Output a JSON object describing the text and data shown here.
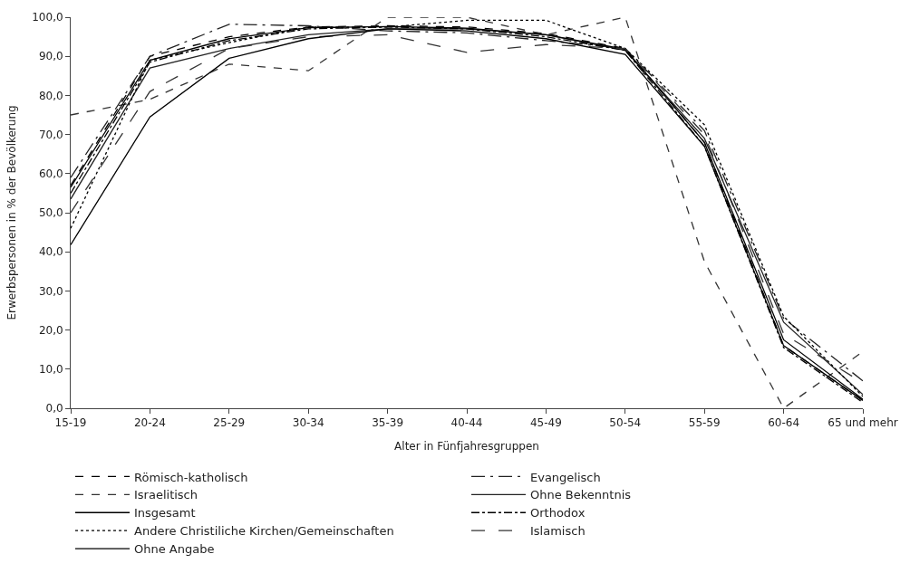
{
  "chart_data": {
    "type": "line",
    "xlabel": "Alter in Fünfjahresgruppen",
    "ylabel": "Erwerbspersonen in % der Bevölkerung",
    "categories": [
      "15-19",
      "20-24",
      "25-29",
      "30-34",
      "35-39",
      "40-44",
      "45-49",
      "50-54",
      "55-59",
      "60-64",
      "65 und mehr"
    ],
    "ylim": [
      0,
      100
    ],
    "yticks": [
      {
        "value": 0,
        "label": "0,0"
      },
      {
        "value": 10,
        "label": "10,0"
      },
      {
        "value": 20,
        "label": "20,0"
      },
      {
        "value": 30,
        "label": "30,0"
      },
      {
        "value": 40,
        "label": "40,0"
      },
      {
        "value": 50,
        "label": "50,0"
      },
      {
        "value": 60,
        "label": "60,0"
      },
      {
        "value": 70,
        "label": "70,0"
      },
      {
        "value": 80,
        "label": "80,0"
      },
      {
        "value": 90,
        "label": "90,0"
      },
      {
        "value": 100,
        "label": "100,0"
      }
    ],
    "legend": "bottom",
    "marker": "none",
    "series": [
      {
        "name": "Römisch-katholisch",
        "color": "#000000",
        "line_style": "dashed",
        "values": [
          57,
          90,
          95,
          97.5,
          97.8,
          97.5,
          95.8,
          92,
          68,
          16,
          2
        ]
      },
      {
        "name": "Evangelisch",
        "color": "#222222",
        "line_style": "longdashdot",
        "values": [
          59,
          90,
          98.2,
          97.8,
          96.5,
          96,
          94,
          92,
          71,
          23,
          7
        ]
      },
      {
        "name": "Israelitisch",
        "color": "#333333",
        "line_style": "dashed",
        "values": [
          75,
          79,
          88,
          86.3,
          100,
          100,
          95.5,
          100,
          37.5,
          0,
          14.5
        ]
      },
      {
        "name": "Ohne Bekenntnis",
        "color": "#222222",
        "line_style": "solid",
        "values": [
          53.5,
          87,
          92,
          95.5,
          97,
          97,
          95.5,
          91.5,
          69,
          22,
          3.5
        ]
      },
      {
        "name": "Insgesamt",
        "color": "#000000",
        "line_style": "solid",
        "values": [
          56.5,
          89,
          94.5,
          97.3,
          97.6,
          97.2,
          95.5,
          91.8,
          68,
          17.5,
          2.3
        ]
      },
      {
        "name": "Orthodox",
        "color": "#000000",
        "line_style": "dashdot",
        "values": [
          55,
          88.5,
          94,
          97,
          97.5,
          97,
          95,
          91.5,
          67,
          15.5,
          1.5
        ]
      },
      {
        "name": "Andere Christiliche Kirchen/Gemeinschaften",
        "color": "#000000",
        "line_style": "dotted",
        "values": [
          46,
          89,
          93.5,
          97.5,
          97.5,
          99.2,
          99.2,
          92,
          72.5,
          23.5,
          3
        ]
      },
      {
        "name": "Islamisch",
        "color": "#333333",
        "line_style": "longdash",
        "values": [
          50,
          81,
          92,
          95,
          95.5,
          91,
          93,
          92,
          70,
          19,
          6.5
        ]
      },
      {
        "name": "Ohne Angabe",
        "color": "#000000",
        "line_style": "solid",
        "values": [
          41.8,
          74.5,
          89.5,
          94.5,
          97,
          96.5,
          94.5,
          90.5,
          67,
          16,
          2
        ]
      }
    ]
  }
}
